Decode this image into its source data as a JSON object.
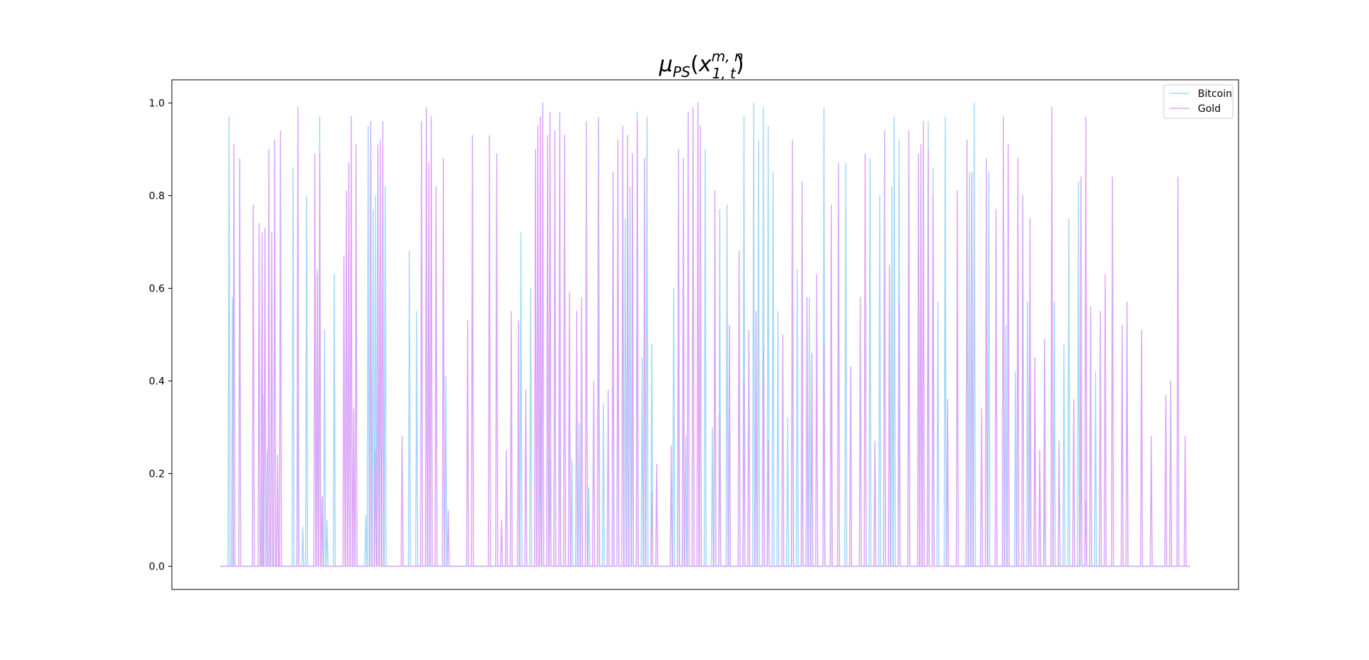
{
  "chart_data": {
    "type": "line",
    "title": {
      "symbol": "μ",
      "subscript": "PS",
      "open_paren": "(",
      "variable": "x",
      "var_subscript": "1, t",
      "var_superscript": "m, n",
      "close_paren": ")"
    },
    "xlabel": "",
    "ylabel": "",
    "ylim": [
      -0.05,
      1.05
    ],
    "xlim": [
      -100,
      2100
    ],
    "x_ticks_visible": false,
    "y_ticks": [
      0.0,
      0.2,
      0.4,
      0.6,
      0.8,
      1.0
    ],
    "y_tick_labels": [
      "0.0",
      "0.2",
      "0.4",
      "0.6",
      "0.8",
      "1.0"
    ],
    "grid": false,
    "legend": {
      "placement": "top-right",
      "entries": [
        "Bitcoin",
        "Gold"
      ]
    },
    "x_domain": [
      0,
      2000
    ],
    "series": [
      {
        "name": "Bitcoin",
        "color": "#a4d8f6",
        "spikes": [
          [
            18,
            0.97
          ],
          [
            25,
            0.58
          ],
          [
            88,
            0.37
          ],
          [
            97,
            0.25
          ],
          [
            150,
            0.86
          ],
          [
            160,
            0.36
          ],
          [
            170,
            0.085
          ],
          [
            178,
            0.8
          ],
          [
            200,
            0.64
          ],
          [
            205,
            0.97
          ],
          [
            215,
            0.51
          ],
          [
            220,
            0.1
          ],
          [
            235,
            0.63
          ],
          [
            300,
            0.11
          ],
          [
            305,
            0.95
          ],
          [
            310,
            0.92
          ],
          [
            315,
            0.77
          ],
          [
            320,
            0.8
          ],
          [
            325,
            0.74
          ],
          [
            330,
            0.88
          ],
          [
            340,
            0.82
          ],
          [
            390,
            0.68
          ],
          [
            405,
            0.55
          ],
          [
            465,
            0.41
          ],
          [
            620,
            0.72
          ],
          [
            640,
            0.6
          ],
          [
            660,
            0.35
          ],
          [
            680,
            0.23
          ],
          [
            700,
            0.46
          ],
          [
            725,
            0.23
          ],
          [
            740,
            0.31
          ],
          [
            760,
            0.17
          ],
          [
            780,
            0.97
          ],
          [
            790,
            0.35
          ],
          [
            810,
            0.71
          ],
          [
            820,
            0.7
          ],
          [
            835,
            0.75
          ],
          [
            845,
            0.82
          ],
          [
            850,
            0.68
          ],
          [
            860,
            0.98
          ],
          [
            870,
            0.45
          ],
          [
            880,
            0.97
          ],
          [
            890,
            0.48
          ],
          [
            935,
            0.6
          ],
          [
            945,
            0.55
          ],
          [
            955,
            0.62
          ],
          [
            960,
            0.28
          ],
          [
            1000,
            0.9
          ],
          [
            1015,
            0.3
          ],
          [
            1030,
            0.77
          ],
          [
            1045,
            0.78
          ],
          [
            1080,
            0.97
          ],
          [
            1100,
            1.0
          ],
          [
            1110,
            0.92
          ],
          [
            1120,
            0.99
          ],
          [
            1130,
            0.95
          ],
          [
            1140,
            0.85
          ],
          [
            1150,
            0.55
          ],
          [
            1170,
            0.32
          ],
          [
            1180,
            0.85
          ],
          [
            1190,
            0.64
          ],
          [
            1200,
            0.33
          ],
          [
            1215,
            0.58
          ],
          [
            1245,
            0.99
          ],
          [
            1260,
            0.64
          ],
          [
            1290,
            0.87
          ],
          [
            1340,
            0.88
          ],
          [
            1360,
            0.8
          ],
          [
            1385,
            0.82
          ],
          [
            1390,
            0.97
          ],
          [
            1400,
            0.92
          ],
          [
            1420,
            0.81
          ],
          [
            1460,
            0.96
          ],
          [
            1470,
            0.86
          ],
          [
            1480,
            0.57
          ],
          [
            1495,
            0.97
          ],
          [
            1545,
            0.85
          ],
          [
            1555,
            1.0
          ],
          [
            1585,
            0.85
          ],
          [
            1620,
            0.52
          ],
          [
            1640,
            0.42
          ],
          [
            1665,
            0.57
          ],
          [
            1670,
            0.46
          ],
          [
            1700,
            0.2
          ],
          [
            1720,
            0.57
          ],
          [
            1740,
            0.48
          ],
          [
            1750,
            0.75
          ],
          [
            1770,
            0.83
          ],
          [
            1775,
            0.39
          ],
          [
            1785,
            0.14
          ],
          [
            1805,
            0.42
          ]
        ]
      },
      {
        "name": "Gold",
        "color": "#dba6f8",
        "spikes": [
          [
            28,
            0.91
          ],
          [
            40,
            0.88
          ],
          [
            68,
            0.78
          ],
          [
            80,
            0.74
          ],
          [
            86,
            0.72
          ],
          [
            92,
            0.73
          ],
          [
            100,
            0.9
          ],
          [
            106,
            0.72
          ],
          [
            112,
            0.92
          ],
          [
            118,
            0.24
          ],
          [
            124,
            0.94
          ],
          [
            160,
            0.99
          ],
          [
            195,
            0.89
          ],
          [
            200,
            0.63
          ],
          [
            205,
            0.89
          ],
          [
            210,
            0.15
          ],
          [
            255,
            0.67
          ],
          [
            260,
            0.81
          ],
          [
            265,
            0.87
          ],
          [
            270,
            0.97
          ],
          [
            275,
            0.34
          ],
          [
            280,
            0.91
          ],
          [
            310,
            0.96
          ],
          [
            320,
            0.25
          ],
          [
            325,
            0.91
          ],
          [
            330,
            0.92
          ],
          [
            335,
            0.96
          ],
          [
            375,
            0.28
          ],
          [
            415,
            0.96
          ],
          [
            425,
            0.99
          ],
          [
            430,
            0.87
          ],
          [
            435,
            0.97
          ],
          [
            445,
            0.82
          ],
          [
            460,
            0.88
          ],
          [
            470,
            0.12
          ],
          [
            510,
            0.53
          ],
          [
            520,
            0.93
          ],
          [
            555,
            0.93
          ],
          [
            570,
            0.89
          ],
          [
            580,
            0.1
          ],
          [
            590,
            0.25
          ],
          [
            600,
            0.55
          ],
          [
            615,
            0.53
          ],
          [
            630,
            0.38
          ],
          [
            650,
            0.9
          ],
          [
            655,
            0.95
          ],
          [
            660,
            0.97
          ],
          [
            665,
            1.0
          ],
          [
            675,
            0.93
          ],
          [
            680,
            0.98
          ],
          [
            690,
            0.94
          ],
          [
            700,
            0.98
          ],
          [
            710,
            0.93
          ],
          [
            720,
            0.59
          ],
          [
            735,
            0.55
          ],
          [
            745,
            0.58
          ],
          [
            755,
            0.96
          ],
          [
            770,
            0.4
          ],
          [
            780,
            0.96
          ],
          [
            800,
            0.38
          ],
          [
            810,
            0.85
          ],
          [
            820,
            0.92
          ],
          [
            830,
            0.95
          ],
          [
            840,
            0.93
          ],
          [
            850,
            0.89
          ],
          [
            860,
            0.96
          ],
          [
            875,
            0.88
          ],
          [
            890,
            0.16
          ],
          [
            900,
            0.22
          ],
          [
            930,
            0.26
          ],
          [
            945,
            0.9
          ],
          [
            955,
            0.88
          ],
          [
            965,
            0.98
          ],
          [
            975,
            0.99
          ],
          [
            985,
            1.0
          ],
          [
            990,
            0.95
          ],
          [
            1020,
            0.81
          ],
          [
            1030,
            0.33
          ],
          [
            1050,
            0.52
          ],
          [
            1070,
            0.68
          ],
          [
            1080,
            0.4
          ],
          [
            1090,
            0.51
          ],
          [
            1105,
            0.55
          ],
          [
            1120,
            0.47
          ],
          [
            1130,
            0.27
          ],
          [
            1160,
            0.5
          ],
          [
            1180,
            0.92
          ],
          [
            1200,
            0.83
          ],
          [
            1210,
            0.58
          ],
          [
            1220,
            0.46
          ],
          [
            1230,
            0.63
          ],
          [
            1245,
            0.48
          ],
          [
            1260,
            0.78
          ],
          [
            1275,
            0.87
          ],
          [
            1300,
            0.43
          ],
          [
            1320,
            0.58
          ],
          [
            1330,
            0.89
          ],
          [
            1350,
            0.27
          ],
          [
            1370,
            0.94
          ],
          [
            1380,
            0.65
          ],
          [
            1400,
            0.57
          ],
          [
            1420,
            0.94
          ],
          [
            1440,
            0.89
          ],
          [
            1445,
            0.91
          ],
          [
            1450,
            0.96
          ],
          [
            1460,
            0.9
          ],
          [
            1470,
            0.8
          ],
          [
            1500,
            0.36
          ],
          [
            1520,
            0.81
          ],
          [
            1540,
            0.92
          ],
          [
            1550,
            0.85
          ],
          [
            1570,
            0.34
          ],
          [
            1580,
            0.88
          ],
          [
            1600,
            0.77
          ],
          [
            1615,
            0.97
          ],
          [
            1625,
            0.91
          ],
          [
            1645,
            0.88
          ],
          [
            1655,
            0.8
          ],
          [
            1670,
            0.75
          ],
          [
            1680,
            0.45
          ],
          [
            1690,
            0.25
          ],
          [
            1700,
            0.49
          ],
          [
            1715,
            0.99
          ],
          [
            1730,
            0.27
          ],
          [
            1760,
            0.36
          ],
          [
            1775,
            0.84
          ],
          [
            1785,
            0.97
          ],
          [
            1795,
            0.56
          ],
          [
            1815,
            0.55
          ],
          [
            1825,
            0.63
          ],
          [
            1840,
            0.84
          ],
          [
            1860,
            0.52
          ],
          [
            1870,
            0.57
          ],
          [
            1900,
            0.51
          ],
          [
            1920,
            0.28
          ],
          [
            1950,
            0.37
          ],
          [
            1960,
            0.4
          ],
          [
            1975,
            0.84
          ],
          [
            1990,
            0.28
          ]
        ]
      }
    ]
  }
}
